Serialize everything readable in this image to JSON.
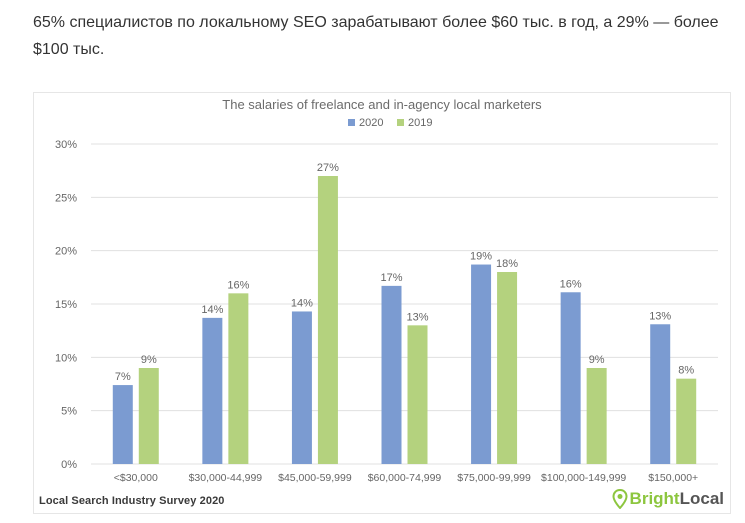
{
  "intro_text": "65% специалистов по локальному SEO зарабатывают более $60 тыс. в год, а 29% — более $100 тыс.",
  "footer": {
    "source": "Local Search Industry Survey 2020",
    "logo_bright": "Bright",
    "logo_local": "Local"
  },
  "colors": {
    "series_2020": "#7b9bd1",
    "series_2019": "#b4d27e",
    "grid": "#e0e0e0",
    "axis_text": "#666666",
    "title_text": "#6b6b6b"
  },
  "chart_data": {
    "type": "bar",
    "title": "The salaries of freelance and in-agency local marketers",
    "legend_position": "top",
    "grid": true,
    "ylim": [
      0,
      30
    ],
    "yticks": [
      0,
      5,
      10,
      15,
      20,
      25,
      30
    ],
    "ytick_labels": [
      "0%",
      "5%",
      "10%",
      "15%",
      "20%",
      "25%",
      "30%"
    ],
    "categories": [
      "<$30,000",
      "$30,000-44,999",
      "$45,000-59,999",
      "$60,000-74,999",
      "$75,000-99,999",
      "$100,000-149,999",
      "$150,000+"
    ],
    "series": [
      {
        "name": "2020",
        "values": [
          7.4,
          13.7,
          14.3,
          16.7,
          18.7,
          16.1,
          13.1
        ],
        "labels": [
          "7%",
          "14%",
          "14%",
          "17%",
          "19%",
          "16%",
          "13%"
        ]
      },
      {
        "name": "2019",
        "values": [
          9,
          16,
          27,
          13,
          18,
          9,
          8
        ],
        "labels": [
          "9%",
          "16%",
          "27%",
          "13%",
          "18%",
          "9%",
          "8%"
        ]
      }
    ]
  }
}
